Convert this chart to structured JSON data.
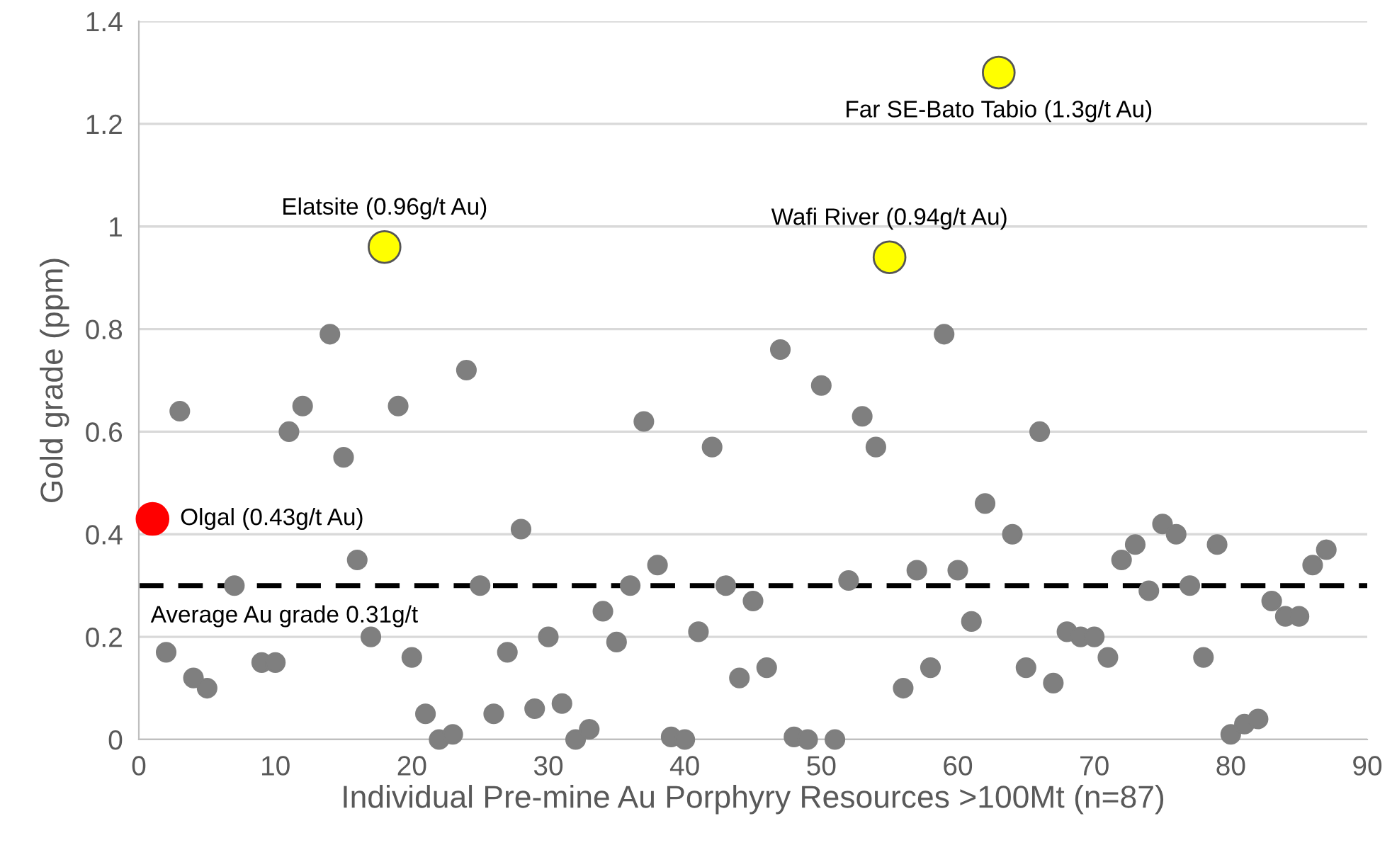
{
  "chart_data": {
    "type": "scatter",
    "xlabel": "Individual Pre-mine Au Porphyry Resources >100Mt (n=87)",
    "ylabel": "Gold grade (ppm)",
    "xlim": [
      0,
      90
    ],
    "xticks": [
      0,
      10,
      20,
      30,
      40,
      50,
      60,
      70,
      80,
      90
    ],
    "ylim": [
      0,
      1.4
    ],
    "yticks": [
      0,
      0.2,
      0.4,
      0.6,
      0.8,
      1,
      1.2,
      1.4
    ],
    "grid": "y",
    "marker": "circle",
    "series": [
      {
        "color": "#7f7f7f",
        "x": [
          2,
          3,
          4,
          5,
          7,
          9,
          10,
          11,
          12,
          14,
          15,
          16,
          17,
          19,
          20,
          21,
          22,
          23,
          24,
          25,
          26,
          27,
          28,
          29,
          30,
          31,
          32,
          33,
          34,
          35,
          36,
          37,
          38,
          39,
          40,
          41,
          42,
          43,
          44,
          45,
          46,
          47,
          48,
          49,
          50,
          51,
          52,
          53,
          54,
          56,
          57,
          58,
          59,
          60,
          61,
          62,
          64,
          65,
          66,
          67,
          68,
          69,
          70,
          71,
          72,
          73,
          74,
          75,
          76,
          77,
          78,
          79,
          80,
          81,
          82,
          83,
          84,
          85,
          86,
          87
        ],
        "values": [
          0.17,
          0.64,
          0.12,
          0.1,
          0.3,
          0.15,
          0.15,
          0.6,
          0.65,
          0.79,
          0.55,
          0.35,
          0.2,
          0.65,
          0.16,
          0.05,
          0.0,
          0.01,
          0.72,
          0.3,
          0.05,
          0.17,
          0.41,
          0.06,
          0.2,
          0.07,
          0.0,
          0.02,
          0.25,
          0.19,
          0.3,
          0.62,
          0.34,
          0.005,
          0.0,
          0.21,
          0.57,
          0.3,
          0.12,
          0.27,
          0.14,
          0.76,
          0.005,
          0.0,
          0.69,
          0.0,
          0.31,
          0.63,
          0.57,
          0.1,
          0.33,
          0.14,
          0.79,
          0.33,
          0.23,
          0.46,
          0.4,
          0.14,
          0.6,
          0.11,
          0.21,
          0.2,
          0.2,
          0.16,
          0.35,
          0.38,
          0.29,
          0.42,
          0.4,
          0.3,
          0.16,
          0.38,
          0.01,
          0.03,
          0.04,
          0.27,
          0.24,
          0.24,
          0.34,
          0.37
        ]
      },
      {
        "color": "#ff0000",
        "x": [
          1
        ],
        "values": [
          0.43
        ]
      },
      {
        "color": "#ffff00",
        "x": [
          18,
          55,
          63
        ],
        "values": [
          0.96,
          0.94,
          1.3
        ]
      }
    ],
    "annotations": [
      {
        "text": "Olgal (0.43g/t Au)",
        "x": 1,
        "y": 0.43
      },
      {
        "text": "Elatsite (0.96g/t Au)",
        "x": 18,
        "y": 0.96
      },
      {
        "text": "Wafi River (0.94g/t Au)",
        "x": 55,
        "y": 0.94
      },
      {
        "text": "Far SE-Bato Tabio (1.3g/t Au)",
        "x": 63,
        "y": 1.3
      }
    ],
    "ref_lines": [
      {
        "axis": "y",
        "value": 0.3,
        "label": "Average Au grade 0.31g/t",
        "color": "#000000",
        "line_style": "dashed"
      }
    ]
  }
}
